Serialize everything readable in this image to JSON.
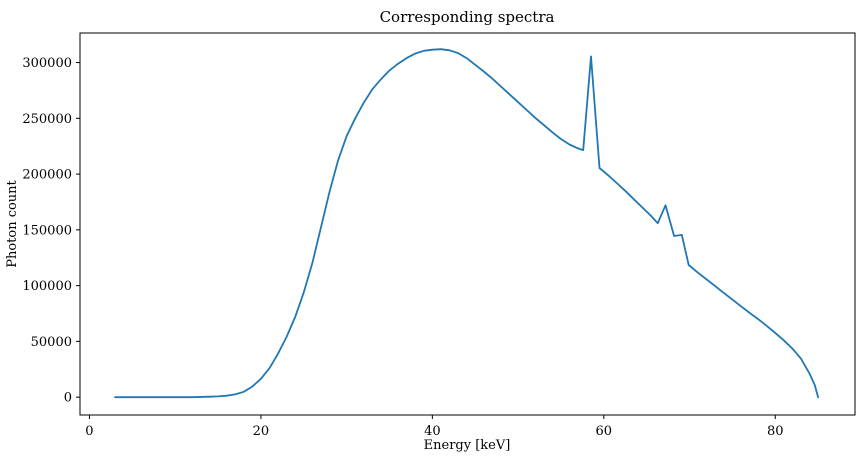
{
  "chart_data": {
    "type": "line",
    "title": "Corresponding spectra",
    "xlabel": "Energy [keV]",
    "ylabel": "Photon count",
    "x_ticks": [
      0,
      20,
      40,
      60,
      80
    ],
    "y_ticks": [
      0,
      50000,
      100000,
      150000,
      200000,
      250000,
      300000
    ],
    "xlim": [
      -1.1,
      89.3
    ],
    "ylim": [
      -16000,
      326500
    ],
    "grid": false,
    "legend": "none",
    "background_color": "#ffffff",
    "spine_color": "#000000",
    "text_color": "#000000",
    "series": [
      {
        "name": "spectrum",
        "color": "#1f77b4",
        "line_width": 1.8,
        "points": [
          [
            3,
            0
          ],
          [
            6,
            0
          ],
          [
            9,
            0
          ],
          [
            12,
            0
          ],
          [
            14,
            400
          ],
          [
            15,
            700
          ],
          [
            16,
            1300
          ],
          [
            17,
            2500
          ],
          [
            18,
            4800
          ],
          [
            19,
            9500
          ],
          [
            20,
            16500
          ],
          [
            21,
            26000
          ],
          [
            22,
            39000
          ],
          [
            23,
            54000
          ],
          [
            24,
            72000
          ],
          [
            25,
            94000
          ],
          [
            26,
            120000
          ],
          [
            27,
            152000
          ],
          [
            28,
            184000
          ],
          [
            29,
            212000
          ],
          [
            30,
            234000
          ],
          [
            31,
            250000
          ],
          [
            32,
            264000
          ],
          [
            33,
            276000
          ],
          [
            34,
            285000
          ],
          [
            35,
            293000
          ],
          [
            36,
            299000
          ],
          [
            37,
            304000
          ],
          [
            38,
            308000
          ],
          [
            39,
            310500
          ],
          [
            40,
            311500
          ],
          [
            41,
            312000
          ],
          [
            42,
            311000
          ],
          [
            43,
            308500
          ],
          [
            44,
            304000
          ],
          [
            45,
            298000
          ],
          [
            46,
            292000
          ],
          [
            47,
            285500
          ],
          [
            48,
            278500
          ],
          [
            49,
            271500
          ],
          [
            50,
            264500
          ],
          [
            51,
            257500
          ],
          [
            52,
            250500
          ],
          [
            53,
            244000
          ],
          [
            54,
            237500
          ],
          [
            55,
            231500
          ],
          [
            56,
            226500
          ],
          [
            57,
            223000
          ],
          [
            57.6,
            221500
          ],
          [
            58.5,
            305500
          ],
          [
            59.5,
            205500
          ],
          [
            60.5,
            199000
          ],
          [
            61.5,
            192000
          ],
          [
            62.5,
            185000
          ],
          [
            63.5,
            177500
          ],
          [
            64.5,
            170000
          ],
          [
            65.5,
            162500
          ],
          [
            66.3,
            156000
          ],
          [
            67.2,
            172000
          ],
          [
            68.2,
            144500
          ],
          [
            69.1,
            145500
          ],
          [
            69.9,
            118500
          ],
          [
            71,
            111500
          ],
          [
            72,
            105500
          ],
          [
            73,
            99500
          ],
          [
            74,
            93500
          ],
          [
            75,
            87500
          ],
          [
            76,
            81500
          ],
          [
            77,
            75500
          ],
          [
            78,
            70000
          ],
          [
            79,
            64000
          ],
          [
            80,
            57500
          ],
          [
            81,
            51000
          ],
          [
            82,
            43500
          ],
          [
            83,
            34500
          ],
          [
            84,
            21000
          ],
          [
            84.6,
            11000
          ],
          [
            85,
            0
          ]
        ]
      }
    ]
  }
}
